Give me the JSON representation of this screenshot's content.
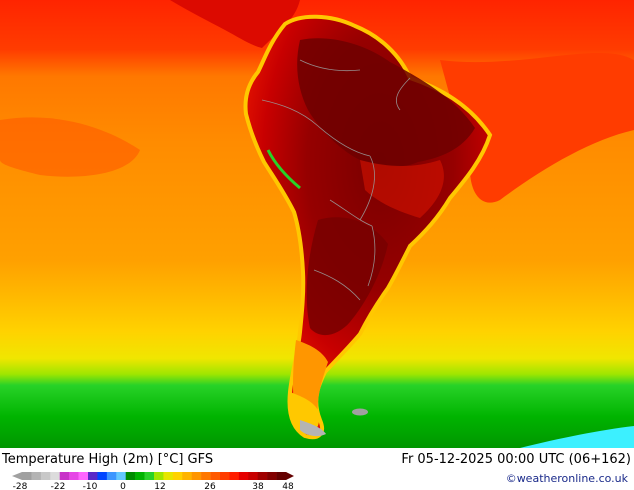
{
  "title": "Temperature High (2m) [°C] GFS",
  "datetime": "Fr 05-12-2025 00:00 UTC (06+162)",
  "credit": "©weatheronline.co.uk",
  "legend": {
    "ticks": [
      "-28",
      "-22",
      "-10",
      "0",
      "12",
      "26",
      "38",
      "48"
    ],
    "colors": [
      "#a0a0a0",
      "#b4b4b4",
      "#c8c8c8",
      "#dcdcdc",
      "#c832c8",
      "#e646e6",
      "#ff64ff",
      "#5a28c8",
      "#0046ff",
      "#3c96ff",
      "#64c8ff",
      "#008c00",
      "#00b400",
      "#28d228",
      "#a0e600",
      "#e6e600",
      "#ffd200",
      "#ffb400",
      "#ff9600",
      "#ff7800",
      "#ff5a00",
      "#ff3c00",
      "#ff1e00",
      "#e60000",
      "#c80000",
      "#a00000",
      "#820000",
      "#640000"
    ]
  },
  "map_colors": {
    "ocean_north": "#ff2a00",
    "ocean_mid": "#ff8a00",
    "ocean_band": "#ffb400",
    "ocean_south": "#f5e600",
    "ocean_south_green": "#19d219",
    "land_hot": "#8c0000",
    "land_very_hot": "#6e0000",
    "land_warm": "#ff5a00",
    "andes": "#ffc800",
    "antarctic_cyan": "#3cf0ff",
    "border": "#9a9a9a"
  }
}
